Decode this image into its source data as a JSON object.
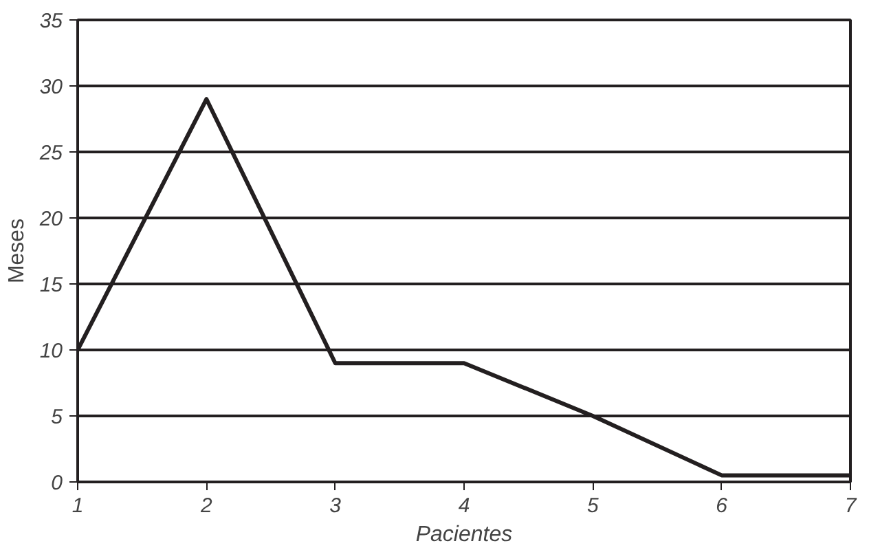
{
  "chart_data": {
    "type": "line",
    "xlabel": "Pacientes",
    "ylabel": "Meses",
    "x": [
      1,
      2,
      3,
      4,
      5,
      6,
      7
    ],
    "series": [
      {
        "color": "#231f20",
        "values": [
          10,
          29,
          9,
          9,
          5,
          0.5,
          0.5
        ]
      }
    ],
    "xlim": [
      1,
      7
    ],
    "ylim": [
      0,
      35
    ],
    "xticks": [
      1,
      2,
      3,
      4,
      5,
      6,
      7
    ],
    "yticks": [
      0,
      5,
      10,
      15,
      20,
      25,
      30,
      35
    ],
    "grid": "y",
    "marker": "none",
    "line_style": "solid"
  }
}
